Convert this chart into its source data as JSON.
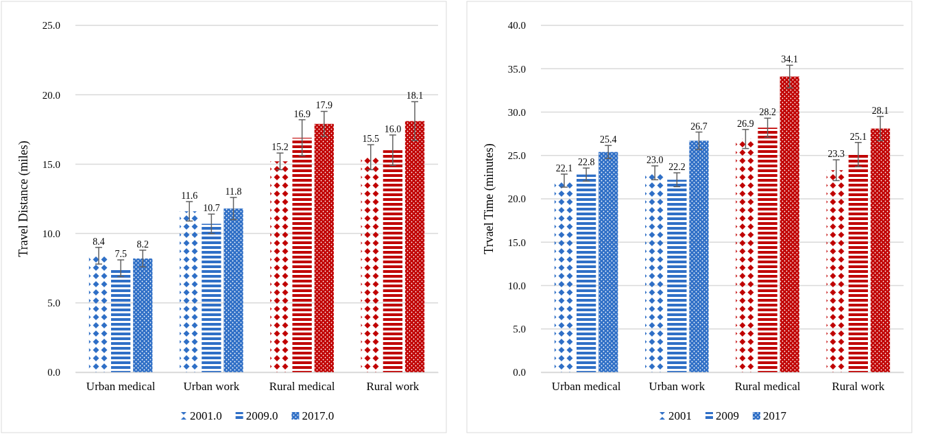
{
  "chart_data": [
    {
      "type": "bar",
      "ylabel": "Travel Distance (miles)",
      "categories": [
        "Urban medical",
        "Urban work",
        "Rural medical",
        "Rural work"
      ],
      "series": [
        {
          "name": "2001.0",
          "color": "#2f6fc6",
          "colors": [
            "#2f6fc6",
            "#2f6fc6",
            "#c00000",
            "#c00000"
          ],
          "values": [
            8.4,
            11.6,
            15.2,
            15.5
          ],
          "value_labels": [
            "8.4",
            "11.6",
            "15.2",
            "15.5"
          ],
          "errors": [
            0.6,
            0.7,
            0.6,
            0.9
          ]
        },
        {
          "name": "2009.0",
          "color": "#2f6fc6",
          "colors": [
            "#2f6fc6",
            "#2f6fc6",
            "#c00000",
            "#c00000"
          ],
          "values": [
            7.5,
            10.7,
            16.9,
            16.0
          ],
          "value_labels": [
            "7.5",
            "10.7",
            "16.9",
            "16.0"
          ],
          "errors": [
            0.6,
            0.7,
            1.3,
            1.1
          ]
        },
        {
          "name": "2017.0",
          "color": "#2f6fc6",
          "colors": [
            "#2f6fc6",
            "#2f6fc6",
            "#c00000",
            "#c00000"
          ],
          "values": [
            8.2,
            11.8,
            17.9,
            18.1
          ],
          "value_labels": [
            "8.2",
            "11.8",
            "17.9",
            "18.1"
          ],
          "errors": [
            0.6,
            0.8,
            0.9,
            1.4
          ]
        }
      ],
      "ylim": [
        0,
        25
      ],
      "yticks": [
        {
          "value": 0,
          "label": "0.0"
        },
        {
          "value": 5,
          "label": "5.0"
        },
        {
          "value": 10,
          "label": "10.0"
        },
        {
          "value": 15,
          "label": "15.0"
        },
        {
          "value": 20,
          "label": "20.0"
        },
        {
          "value": 25,
          "label": "25.0"
        }
      ],
      "grid": "y",
      "legend": "bottom"
    },
    {
      "type": "bar",
      "ylabel": "Trvael Time (minutes)",
      "categories": [
        "Urban medical",
        "Urban work",
        "Rural medical",
        "Rural work"
      ],
      "series": [
        {
          "name": "2001",
          "color": "#2f6fc6",
          "colors": [
            "#2f6fc6",
            "#2f6fc6",
            "#c00000",
            "#c00000"
          ],
          "values": [
            22.1,
            23.0,
            26.9,
            23.3
          ],
          "value_labels": [
            "22.1",
            "23.0",
            "26.9",
            "23.3"
          ],
          "errors": [
            0.75,
            0.8,
            1.1,
            1.2
          ]
        },
        {
          "name": "2009",
          "color": "#2f6fc6",
          "colors": [
            "#2f6fc6",
            "#2f6fc6",
            "#c00000",
            "#c00000"
          ],
          "values": [
            22.8,
            22.2,
            28.2,
            25.1
          ],
          "value_labels": [
            "22.8",
            "22.2",
            "28.2",
            "25.1"
          ],
          "errors": [
            0.75,
            0.8,
            1.1,
            1.4
          ]
        },
        {
          "name": "2017",
          "color": "#2f6fc6",
          "colors": [
            "#2f6fc6",
            "#2f6fc6",
            "#c00000",
            "#c00000"
          ],
          "values": [
            25.4,
            26.7,
            34.1,
            28.1
          ],
          "value_labels": [
            "25.4",
            "26.7",
            "34.1",
            "28.1"
          ],
          "errors": [
            0.75,
            1.0,
            1.3,
            1.4
          ]
        }
      ],
      "ylim": [
        0,
        40
      ],
      "yticks": [
        {
          "value": 0,
          "label": "0.0"
        },
        {
          "value": 5,
          "label": "5.0"
        },
        {
          "value": 10,
          "label": "10.0"
        },
        {
          "value": 15,
          "label": "15.0"
        },
        {
          "value": 20,
          "label": "20.0"
        },
        {
          "value": 25,
          "label": "25.0"
        },
        {
          "value": 30,
          "label": "30.0"
        },
        {
          "value": 35,
          "label": "35.0"
        },
        {
          "value": 40,
          "label": "40.0"
        }
      ],
      "grid": "y",
      "legend": "bottom"
    }
  ]
}
